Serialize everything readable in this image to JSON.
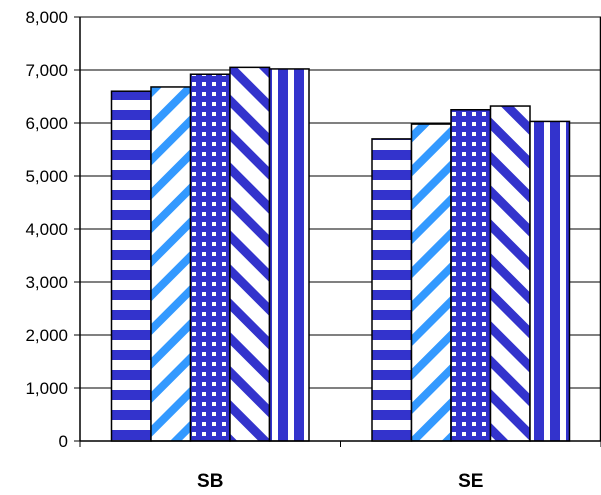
{
  "chart_data": {
    "type": "bar",
    "title": "",
    "xlabel": "",
    "ylabel": "",
    "ylim": [
      0,
      8000
    ],
    "yticks": [
      0,
      1000,
      2000,
      3000,
      4000,
      5000,
      6000,
      7000,
      8000
    ],
    "ytick_labels": [
      "0",
      "1,000",
      "2,000",
      "3,000",
      "4,000",
      "5,000",
      "6,000",
      "7,000",
      "8,000"
    ],
    "grid": true,
    "legend": "none",
    "categories": [
      "SB",
      "SE"
    ],
    "series": [
      {
        "values": [
          6600,
          5700
        ],
        "pattern": "horizontal-stripes",
        "color": "#3333cc"
      },
      {
        "values": [
          6680,
          5980
        ],
        "pattern": "diagonal-stripes-up",
        "color": "#3399ff"
      },
      {
        "values": [
          6920,
          6250
        ],
        "pattern": "checker",
        "color": "#3333cc"
      },
      {
        "values": [
          7050,
          6320
        ],
        "pattern": "diagonal-stripes-down",
        "color": "#3333cc"
      },
      {
        "values": [
          7020,
          6030
        ],
        "pattern": "vertical-stripes",
        "color": "#3333cc"
      }
    ]
  }
}
